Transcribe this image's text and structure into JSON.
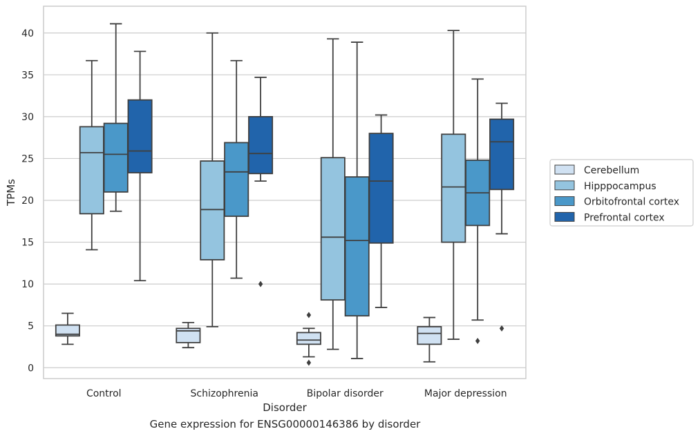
{
  "caption": "Gene expression for ENSG00000146386 by disorder",
  "chart_data": {
    "type": "box",
    "xlabel": "Disorder",
    "ylabel": "TPMs",
    "ylim": [
      -1.3,
      43.2
    ],
    "yticks": [
      0,
      5,
      10,
      15,
      20,
      25,
      30,
      35,
      40
    ],
    "grid": true,
    "legend_position": "right",
    "categories": [
      "Control",
      "Schizophrenia",
      "Bipolar disorder",
      "Major depression"
    ],
    "series": [
      {
        "name": "Cerebellum",
        "color": "#d0e1f2",
        "boxes": [
          {
            "whislo": 2.8,
            "q1": 3.8,
            "med": 4.0,
            "q3": 5.1,
            "whishi": 6.5,
            "fliers": []
          },
          {
            "whislo": 2.4,
            "q1": 3.0,
            "med": 4.4,
            "q3": 4.7,
            "whishi": 5.4,
            "fliers": []
          },
          {
            "whislo": 1.3,
            "q1": 2.8,
            "med": 3.3,
            "q3": 4.2,
            "whishi": 4.7,
            "fliers": [
              6.3,
              0.6
            ]
          },
          {
            "whislo": 0.7,
            "q1": 2.8,
            "med": 4.1,
            "q3": 4.9,
            "whishi": 6.0,
            "fliers": []
          }
        ]
      },
      {
        "name": "Hipppocampus",
        "color": "#94c4df",
        "boxes": [
          {
            "whislo": 14.1,
            "q1": 18.4,
            "med": 25.7,
            "q3": 28.8,
            "whishi": 36.7,
            "fliers": []
          },
          {
            "whislo": 4.9,
            "q1": 12.9,
            "med": 18.9,
            "q3": 24.7,
            "whishi": 40.0,
            "fliers": []
          },
          {
            "whislo": 2.2,
            "q1": 8.1,
            "med": 15.6,
            "q3": 25.1,
            "whishi": 39.3,
            "fliers": []
          },
          {
            "whislo": 3.4,
            "q1": 15.0,
            "med": 21.6,
            "q3": 27.9,
            "whishi": 40.3,
            "fliers": []
          }
        ]
      },
      {
        "name": "Orbitofrontal cortex",
        "color": "#4a98c9",
        "boxes": [
          {
            "whislo": 18.7,
            "q1": 21.0,
            "med": 25.5,
            "q3": 29.2,
            "whishi": 41.1,
            "fliers": []
          },
          {
            "whislo": 10.7,
            "q1": 18.1,
            "med": 23.4,
            "q3": 26.9,
            "whishi": 36.7,
            "fliers": []
          },
          {
            "whislo": 1.1,
            "q1": 6.2,
            "med": 15.2,
            "q3": 22.8,
            "whishi": 38.9,
            "fliers": []
          },
          {
            "whislo": 5.7,
            "q1": 17.0,
            "med": 20.9,
            "q3": 24.8,
            "whishi": 34.5,
            "fliers": [
              3.2
            ]
          }
        ]
      },
      {
        "name": "Prefrontal cortex",
        "color": "#2164ab",
        "boxes": [
          {
            "whislo": 10.4,
            "q1": 23.3,
            "med": 25.9,
            "q3": 32.0,
            "whishi": 37.8,
            "fliers": []
          },
          {
            "whislo": 22.3,
            "q1": 23.2,
            "med": 25.6,
            "q3": 30.0,
            "whishi": 34.7,
            "fliers": [
              10.0
            ]
          },
          {
            "whislo": 7.2,
            "q1": 14.9,
            "med": 22.3,
            "q3": 28.0,
            "whishi": 30.2,
            "fliers": []
          },
          {
            "whislo": 16.0,
            "q1": 21.3,
            "med": 27.0,
            "q3": 29.7,
            "whishi": 31.6,
            "fliers": [
              4.7
            ]
          }
        ]
      }
    ]
  }
}
